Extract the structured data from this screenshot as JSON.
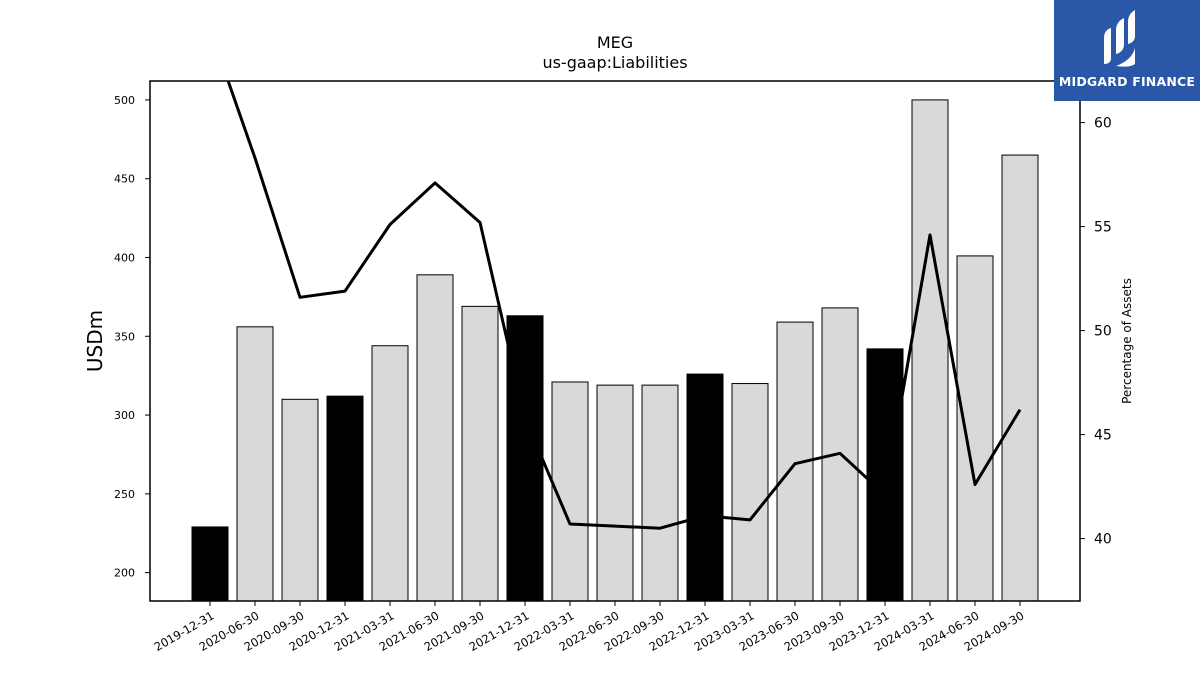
{
  "brand": {
    "name": "MIDGARD FINANCE",
    "logo_icon": "midgard-m-icon",
    "color": "#2a57a8"
  },
  "chart_data": {
    "type": "bar",
    "title": "MEG",
    "subtitle": "us-gaap:Liabilities",
    "ylabel": "USDm",
    "y2label": "Percentage of Assets",
    "ylim": [
      182,
      512
    ],
    "y2lim": [
      37,
      62
    ],
    "yticks": [
      200,
      250,
      300,
      350,
      400,
      450,
      500
    ],
    "y2ticks": [
      40,
      45,
      50,
      55,
      60
    ],
    "categories": [
      "2019-12-31",
      "2020-06-30",
      "2020-09-30",
      "2020-12-31",
      "2021-03-31",
      "2021-06-30",
      "2021-09-30",
      "2021-12-31",
      "2022-03-31",
      "2022-06-30",
      "2022-09-30",
      "2022-12-31",
      "2023-03-31",
      "2023-06-30",
      "2023-09-30",
      "2023-12-31",
      "2024-03-31",
      "2024-06-30",
      "2024-09-30"
    ],
    "series": [
      {
        "type": "bar",
        "values": [
          229,
          356,
          310,
          312,
          344,
          389,
          369,
          363,
          321,
          319,
          319,
          326,
          320,
          359,
          368,
          342,
          500,
          401,
          465
        ],
        "annual": [
          true,
          false,
          false,
          true,
          false,
          false,
          false,
          true,
          false,
          false,
          false,
          true,
          false,
          false,
          false,
          true,
          false,
          false,
          false
        ]
      },
      {
        "type": "line",
        "axis": "right",
        "values": [
          64.5,
          58.3,
          51.6,
          51.9,
          55.1,
          57.1,
          55.2,
          45.8,
          40.7,
          40.6,
          40.5,
          41.1,
          40.9,
          43.6,
          44.1,
          42.1,
          54.6,
          42.6,
          46.2
        ]
      }
    ],
    "colors": {
      "annual_bar": "#000000",
      "quarter_bar": "#d9d9d9",
      "line": "#000000"
    },
    "grid": false,
    "legend": "none"
  }
}
